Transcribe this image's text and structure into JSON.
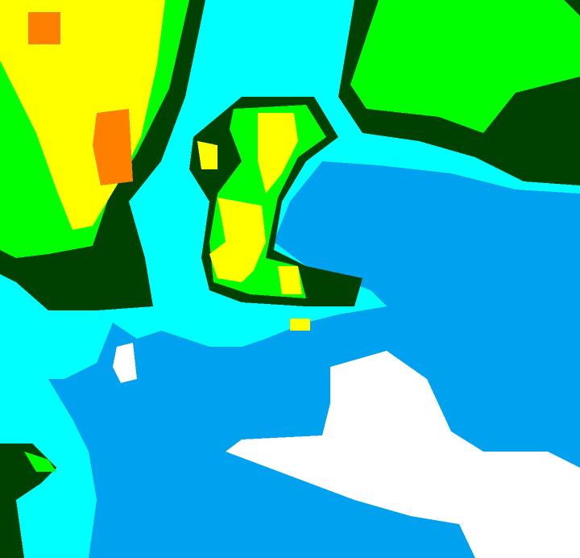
{
  "map": {
    "palette": {
      "background_blue": "#00a2f0",
      "cyan": "#00ffff",
      "dark_green": "#004000",
      "green": "#00ff00",
      "yellow": "#ffff00",
      "orange": "#ff8000",
      "white": "#ffffff"
    }
  }
}
